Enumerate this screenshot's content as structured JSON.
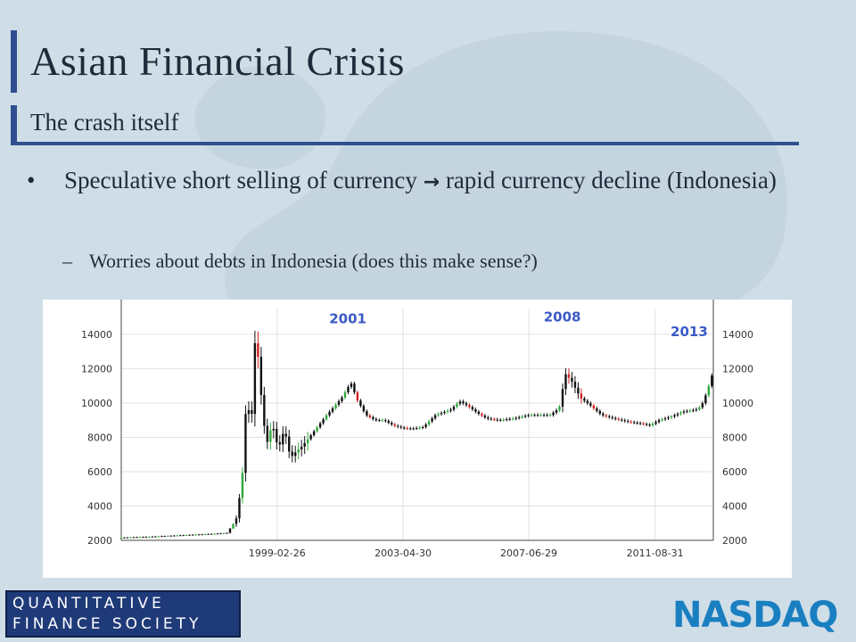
{
  "slide": {
    "title": "Asian Financial Crisis",
    "subtitle": "The crash itself",
    "bullets": [
      {
        "text_before": "Speculative short selling of currency",
        "arrow": "→",
        "text_after": "rapid currency decline (Indonesia)"
      }
    ],
    "sub_bullets": [
      {
        "dash": "–",
        "text": "Worries about debts in Indonesia (does this make sense?)"
      }
    ]
  },
  "logos": {
    "left_line1": "QUANTITATIVE",
    "left_line2": "FINANCE SOCIETY",
    "right": "NASDAQ"
  },
  "colors": {
    "background": "#cfdde7",
    "accent_bar": "#2f4f8f",
    "candle_up": "#2fa83a",
    "candle_down": "#d42020",
    "annotation": "#3b5bc4",
    "nasdaq_blue": "#1a7fc1"
  },
  "chart_data": {
    "type": "line",
    "title": "",
    "xlabel": "",
    "ylabel": "",
    "ylim": [
      2000,
      15500
    ],
    "yticks": [
      2000,
      4000,
      6000,
      8000,
      10000,
      12000,
      14000
    ],
    "y_tick_labels": [
      "2000",
      "4000",
      "6000",
      "8000",
      "10000",
      "12000",
      "14000"
    ],
    "xlim": [
      1994.0,
      2013.6
    ],
    "x_ticks": [
      {
        "label": "1999-02-26",
        "x": 1999.16
      },
      {
        "label": "2003-04-30",
        "x": 2003.33
      },
      {
        "label": "2007-06-29",
        "x": 2007.49
      },
      {
        "label": "2011-08-31",
        "x": 2011.67
      }
    ],
    "annotations": [
      {
        "text": "2001",
        "x": 2001.5,
        "y": 14650
      },
      {
        "text": "2008",
        "x": 2008.6,
        "y": 14750
      },
      {
        "text": "2013",
        "x": 2012.8,
        "y": 13900
      }
    ],
    "grid": true,
    "series": [
      {
        "points": [
          [
            1994.0,
            2160
          ],
          [
            1995.0,
            2220
          ],
          [
            1996.0,
            2300
          ],
          [
            1997.0,
            2380
          ],
          [
            1997.5,
            2430
          ],
          [
            1997.8,
            3200
          ],
          [
            1998.0,
            5500
          ],
          [
            1998.15,
            10500
          ],
          [
            1998.3,
            8500
          ],
          [
            1998.45,
            14500
          ],
          [
            1998.6,
            11000
          ],
          [
            1998.8,
            7500
          ],
          [
            1999.0,
            8800
          ],
          [
            1999.2,
            7300
          ],
          [
            1999.4,
            8500
          ],
          [
            1999.6,
            6800
          ],
          [
            1999.8,
            7200
          ],
          [
            2000.0,
            7500
          ],
          [
            2000.4,
            8400
          ],
          [
            2000.8,
            9300
          ],
          [
            2001.0,
            9700
          ],
          [
            2001.3,
            10300
          ],
          [
            2001.6,
            11200
          ],
          [
            2001.8,
            10200
          ],
          [
            2002.1,
            9300
          ],
          [
            2002.4,
            9000
          ],
          [
            2002.7,
            9000
          ],
          [
            2003.0,
            8700
          ],
          [
            2003.3,
            8550
          ],
          [
            2003.6,
            8500
          ],
          [
            2004.0,
            8600
          ],
          [
            2004.4,
            9300
          ],
          [
            2004.9,
            9600
          ],
          [
            2005.2,
            10100
          ],
          [
            2005.5,
            9800
          ],
          [
            2005.8,
            9400
          ],
          [
            2006.1,
            9100
          ],
          [
            2006.5,
            9000
          ],
          [
            2007.0,
            9100
          ],
          [
            2007.5,
            9300
          ],
          [
            2007.9,
            9300
          ],
          [
            2008.2,
            9300
          ],
          [
            2008.5,
            9700
          ],
          [
            2008.7,
            11700
          ],
          [
            2008.9,
            11300
          ],
          [
            2009.2,
            10300
          ],
          [
            2009.5,
            9900
          ],
          [
            2009.9,
            9300
          ],
          [
            2010.3,
            9100
          ],
          [
            2010.8,
            8900
          ],
          [
            2011.2,
            8800
          ],
          [
            2011.5,
            8700
          ],
          [
            2011.8,
            9000
          ],
          [
            2012.2,
            9200
          ],
          [
            2012.6,
            9500
          ],
          [
            2013.0,
            9600
          ],
          [
            2013.2,
            9800
          ],
          [
            2013.4,
            10700
          ],
          [
            2013.55,
            11600
          ]
        ]
      }
    ]
  }
}
